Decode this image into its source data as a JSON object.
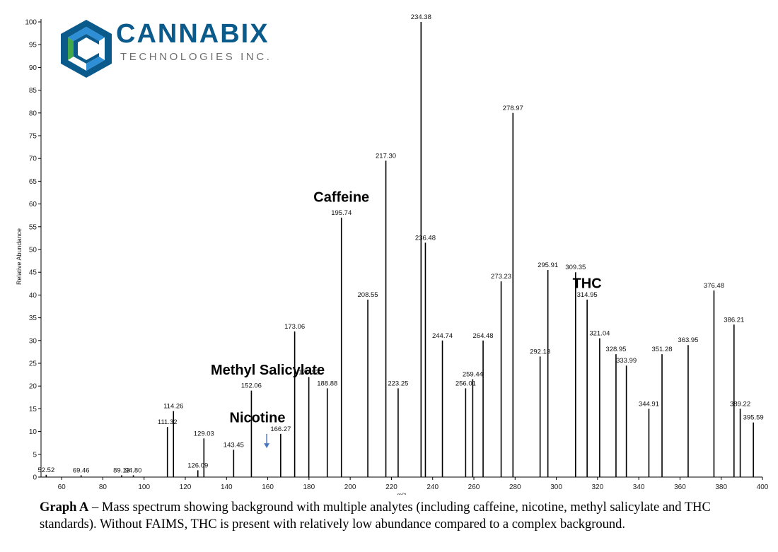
{
  "logo": {
    "word": "CANNABIX",
    "subtitle": "TECHNOLOGIES INC.",
    "colors": {
      "dark": "#0b5a8c",
      "mid": "#2e8fd6",
      "green": "#43a84a"
    }
  },
  "caption": {
    "label": "Graph A",
    "text": " – Mass spectrum showing background with multiple analytes (including caffeine, nicotine, methyl salicylate and THC standards). Without FAIMS, THC is present with relatively low abundance compared to a complex background."
  },
  "chart_data": {
    "type": "bar",
    "xlabel": "m/z",
    "ylabel": "Relative Abundance",
    "xlim": [
      50,
      400
    ],
    "ylim": [
      0,
      100
    ],
    "xticks": [
      60,
      80,
      100,
      120,
      140,
      160,
      180,
      200,
      220,
      240,
      260,
      280,
      300,
      320,
      340,
      360,
      380,
      400
    ],
    "yticks": [
      0,
      5,
      10,
      15,
      20,
      25,
      30,
      35,
      40,
      45,
      50,
      55,
      60,
      65,
      70,
      75,
      80,
      85,
      90,
      95,
      100
    ],
    "grid": false,
    "bar_color": "#000000",
    "peaks": [
      {
        "x": 52.52,
        "y": 0.5,
        "label": "52.52"
      },
      {
        "x": 69.46,
        "y": 0.4,
        "label": "69.46"
      },
      {
        "x": 89.13,
        "y": 0.4,
        "label": "89.13"
      },
      {
        "x": 94.8,
        "y": 0.4,
        "label": "94.80"
      },
      {
        "x": 111.32,
        "y": 11,
        "label": "111.32"
      },
      {
        "x": 114.26,
        "y": 14.5,
        "label": "114.26"
      },
      {
        "x": 126.09,
        "y": 1.5,
        "label": "126.09"
      },
      {
        "x": 129.03,
        "y": 8.5,
        "label": "129.03"
      },
      {
        "x": 143.45,
        "y": 6,
        "label": "143.45"
      },
      {
        "x": 152.06,
        "y": 19,
        "label": "152.06"
      },
      {
        "x": 166.27,
        "y": 9.5,
        "label": "166.27"
      },
      {
        "x": 173.06,
        "y": 32,
        "label": "173.06"
      },
      {
        "x": 179.92,
        "y": 22,
        "label": "179.92"
      },
      {
        "x": 188.88,
        "y": 19.5,
        "label": "188.88"
      },
      {
        "x": 195.74,
        "y": 57,
        "label": "195.74"
      },
      {
        "x": 208.55,
        "y": 39,
        "label": "208.55"
      },
      {
        "x": 217.3,
        "y": 69.5,
        "label": "217.30"
      },
      {
        "x": 223.25,
        "y": 19.5,
        "label": "223.25"
      },
      {
        "x": 234.38,
        "y": 100,
        "label": "234.38"
      },
      {
        "x": 236.48,
        "y": 51.5,
        "label": "236.48"
      },
      {
        "x": 244.74,
        "y": 30,
        "label": "244.74"
      },
      {
        "x": 256.01,
        "y": 19.5,
        "label": "256.01"
      },
      {
        "x": 259.44,
        "y": 21.5,
        "label": "259.44"
      },
      {
        "x": 264.48,
        "y": 30,
        "label": "264.48"
      },
      {
        "x": 273.23,
        "y": 43,
        "label": "273.23"
      },
      {
        "x": 278.97,
        "y": 80,
        "label": "278.97"
      },
      {
        "x": 292.13,
        "y": 26.5,
        "label": "292.13"
      },
      {
        "x": 295.91,
        "y": 45.5,
        "label": "295.91"
      },
      {
        "x": 309.35,
        "y": 45,
        "label": "309.35"
      },
      {
        "x": 314.95,
        "y": 39,
        "label": "314.95"
      },
      {
        "x": 321.04,
        "y": 30.5,
        "label": "321.04"
      },
      {
        "x": 328.95,
        "y": 27,
        "label": "328.95"
      },
      {
        "x": 333.99,
        "y": 24.5,
        "label": "333.99"
      },
      {
        "x": 344.91,
        "y": 15,
        "label": "344.91"
      },
      {
        "x": 351.28,
        "y": 27,
        "label": "351.28"
      },
      {
        "x": 363.95,
        "y": 29,
        "label": "363.95"
      },
      {
        "x": 376.48,
        "y": 41,
        "label": "376.48"
      },
      {
        "x": 386.21,
        "y": 33.5,
        "label": "386.21"
      },
      {
        "x": 389.22,
        "y": 15,
        "label": "389.22"
      },
      {
        "x": 395.59,
        "y": 12,
        "label": "395.59"
      }
    ],
    "annotations": [
      {
        "text": "Caffeine",
        "x": 195.74,
        "y": 60.5
      },
      {
        "text": "THC",
        "x": 314.95,
        "y": 41.5
      },
      {
        "text": "Methyl Salicylate",
        "x": 160,
        "y": 22.5
      },
      {
        "text": "Nicotine",
        "x": 155,
        "y": 12
      }
    ],
    "arrow": {
      "x": 159.5,
      "y_from": 9.5,
      "y_to": 6.5,
      "color": "#4a78c0"
    }
  }
}
